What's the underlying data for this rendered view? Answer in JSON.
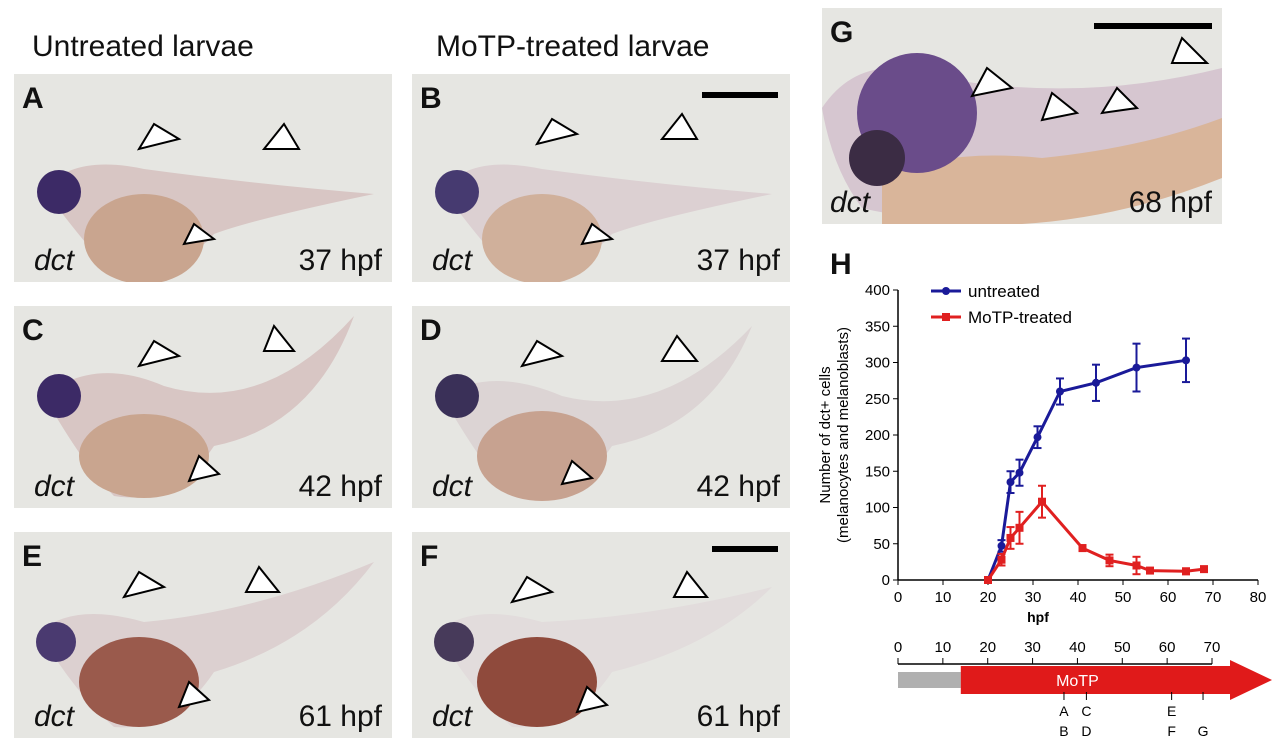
{
  "columns": {
    "left_title": "Untreated larvae",
    "mid_title": "MoTP-treated larvae"
  },
  "panels": [
    {
      "label": "A",
      "gene": "dct",
      "stage": "37 hpf"
    },
    {
      "label": "B",
      "gene": "dct",
      "stage": "37 hpf"
    },
    {
      "label": "C",
      "gene": "dct",
      "stage": "42 hpf"
    },
    {
      "label": "D",
      "gene": "dct",
      "stage": "42 hpf"
    },
    {
      "label": "E",
      "gene": "dct",
      "stage": "61 hpf"
    },
    {
      "label": "F",
      "gene": "dct",
      "stage": "61 hpf"
    },
    {
      "label": "G",
      "gene": "dct",
      "stage": "68 hpf"
    }
  ],
  "colors": {
    "untreated": "#1a1a99",
    "treated": "#e02020",
    "bar_grey": "#b0b0b0",
    "bar_red": "#e01a1a"
  },
  "chart_label": "H",
  "chart_data": {
    "type": "line",
    "xlabel": "hpf",
    "ylabel_line1": "Number of dct+ cells",
    "ylabel_line2": "(melanocytes and melanoblasts)",
    "xlim": [
      0,
      80
    ],
    "ylim": [
      0,
      400
    ],
    "xticks": [
      0,
      10,
      20,
      30,
      40,
      50,
      60,
      70,
      80
    ],
    "yticks": [
      0,
      50,
      100,
      150,
      200,
      250,
      300,
      350,
      400
    ],
    "legend_placement": "top-left",
    "series": [
      {
        "name": "untreated",
        "marker": "circle",
        "x": [
          20,
          23,
          25,
          27,
          31,
          36,
          44,
          53,
          64
        ],
        "y": [
          0,
          47,
          135,
          148,
          197,
          260,
          272,
          293,
          303
        ],
        "err": [
          0,
          8,
          15,
          18,
          15,
          18,
          25,
          33,
          30
        ]
      },
      {
        "name": "MoTP-treated",
        "marker": "square",
        "x": [
          20,
          23,
          25,
          27,
          32,
          41,
          47,
          53,
          56,
          64,
          68
        ],
        "y": [
          0,
          28,
          58,
          72,
          108,
          44,
          27,
          20,
          13,
          12,
          15
        ],
        "err": [
          0,
          8,
          15,
          22,
          22,
          4,
          8,
          12,
          3,
          4,
          3
        ]
      }
    ]
  },
  "timeline": {
    "ticks": [
      "0",
      "10",
      "20",
      "30",
      "40",
      "50",
      "60",
      "70"
    ],
    "bar_label": "MoTP",
    "grey_range": [
      0,
      14
    ],
    "red_start": 14,
    "markers": [
      {
        "top": "A",
        "bottom": "B",
        "x": 37
      },
      {
        "top": "C",
        "bottom": "D",
        "x": 42
      },
      {
        "top": "E",
        "bottom": "F",
        "x": 61
      },
      {
        "top": "",
        "bottom": "G",
        "x": 68
      }
    ]
  }
}
